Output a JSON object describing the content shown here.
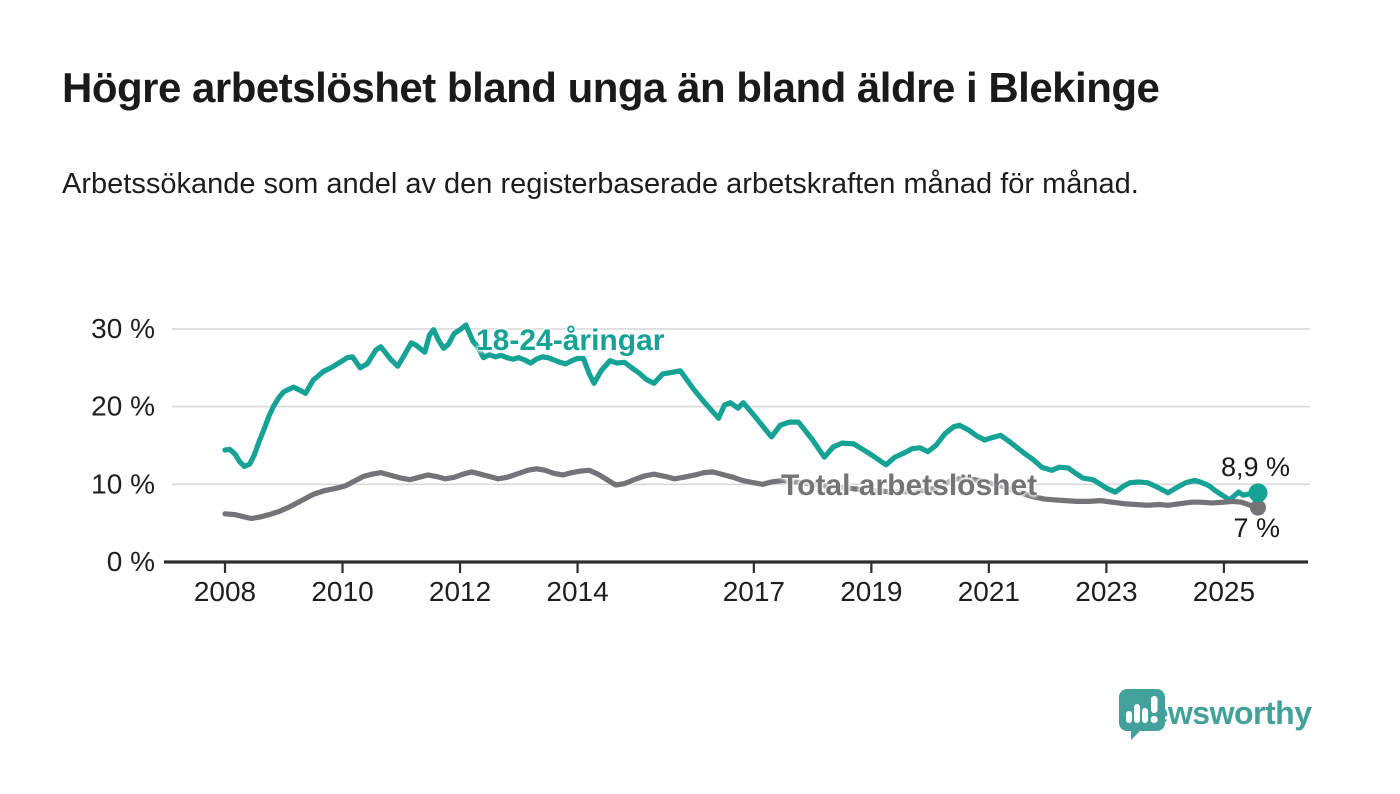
{
  "header": {
    "title": "Högre arbetslöshet bland unga än bland äldre i Blekinge",
    "subtitle": "Arbetssökande som andel av den registerbaserade arbetskraften månad för månad."
  },
  "colors": {
    "young_line": "#16a295",
    "total_line": "#737378",
    "axis": "#2e2e2e",
    "grid": "#d9d9d9",
    "tick_text": "#1f1f1f",
    "brand_teal": "#43a19c"
  },
  "chart_data": {
    "type": "line",
    "title": "Högre arbetslöshet bland unga än bland äldre i Blekinge",
    "subtitle": "Arbetssökande som andel av den registerbaserade arbetskraften månad för månad.",
    "xlabel": "",
    "ylabel": "",
    "grid": "horizontal",
    "legend_position": "inline-labels",
    "x_axis": {
      "ticks": [
        2008,
        2010,
        2012,
        2014,
        2017,
        2019,
        2021,
        2023,
        2025
      ],
      "range": [
        2007.0,
        2026.5
      ]
    },
    "y_axis": {
      "ticks": [
        {
          "value": 0,
          "label": "0 %"
        },
        {
          "value": 10,
          "label": "10 %"
        },
        {
          "value": 20,
          "label": "20 %"
        },
        {
          "value": 30,
          "label": "30 %"
        }
      ],
      "range": [
        0,
        32
      ]
    },
    "series": [
      {
        "name": "18-24-åringar",
        "color": "#16a295",
        "end_label": "8,9 %",
        "end_value": 8.9,
        "points": [
          [
            2008.0,
            14.4
          ],
          [
            2008.08,
            14.5
          ],
          [
            2008.17,
            13.9
          ],
          [
            2008.25,
            12.9
          ],
          [
            2008.33,
            12.3
          ],
          [
            2008.42,
            12.6
          ],
          [
            2008.5,
            13.8
          ],
          [
            2008.58,
            15.5
          ],
          [
            2008.67,
            17.2
          ],
          [
            2008.75,
            18.8
          ],
          [
            2008.83,
            20.1
          ],
          [
            2008.92,
            21.2
          ],
          [
            2009.0,
            21.9
          ],
          [
            2009.08,
            22.2
          ],
          [
            2009.17,
            22.5
          ],
          [
            2009.25,
            22.2
          ],
          [
            2009.37,
            21.7
          ],
          [
            2009.5,
            23.4
          ],
          [
            2009.67,
            24.5
          ],
          [
            2009.83,
            25.1
          ],
          [
            2010.0,
            25.9
          ],
          [
            2010.08,
            26.3
          ],
          [
            2010.17,
            26.4
          ],
          [
            2010.3,
            25.0
          ],
          [
            2010.42,
            25.5
          ],
          [
            2010.57,
            27.3
          ],
          [
            2010.65,
            27.7
          ],
          [
            2010.83,
            26.0
          ],
          [
            2010.94,
            25.2
          ],
          [
            2011.08,
            27.0
          ],
          [
            2011.17,
            28.2
          ],
          [
            2011.25,
            27.9
          ],
          [
            2011.4,
            27.0
          ],
          [
            2011.48,
            29.2
          ],
          [
            2011.55,
            29.9
          ],
          [
            2011.63,
            28.6
          ],
          [
            2011.72,
            27.5
          ],
          [
            2011.8,
            28.0
          ],
          [
            2011.9,
            29.4
          ],
          [
            2012.0,
            29.9
          ],
          [
            2012.1,
            30.5
          ],
          [
            2012.22,
            28.4
          ],
          [
            2012.3,
            27.7
          ],
          [
            2012.4,
            26.3
          ],
          [
            2012.5,
            26.7
          ],
          [
            2012.6,
            26.4
          ],
          [
            2012.7,
            26.6
          ],
          [
            2012.8,
            26.3
          ],
          [
            2012.9,
            26.1
          ],
          [
            2013.0,
            26.3
          ],
          [
            2013.1,
            26.0
          ],
          [
            2013.2,
            25.6
          ],
          [
            2013.3,
            26.1
          ],
          [
            2013.4,
            26.4
          ],
          [
            2013.5,
            26.3
          ],
          [
            2013.6,
            26.0
          ],
          [
            2013.7,
            25.7
          ],
          [
            2013.8,
            25.5
          ],
          [
            2013.9,
            25.9
          ],
          [
            2014.0,
            26.2
          ],
          [
            2014.1,
            26.2
          ],
          [
            2014.2,
            24.2
          ],
          [
            2014.28,
            23.0
          ],
          [
            2014.4,
            24.6
          ],
          [
            2014.55,
            25.9
          ],
          [
            2014.67,
            25.6
          ],
          [
            2014.8,
            25.7
          ],
          [
            2014.92,
            25.0
          ],
          [
            2015.05,
            24.3
          ],
          [
            2015.17,
            23.5
          ],
          [
            2015.3,
            23.0
          ],
          [
            2015.45,
            24.2
          ],
          [
            2015.6,
            24.4
          ],
          [
            2015.75,
            24.6
          ],
          [
            2015.96,
            22.4
          ],
          [
            2016.13,
            20.8
          ],
          [
            2016.27,
            19.6
          ],
          [
            2016.4,
            18.5
          ],
          [
            2016.5,
            20.2
          ],
          [
            2016.6,
            20.5
          ],
          [
            2016.73,
            19.8
          ],
          [
            2016.82,
            20.5
          ],
          [
            2017.0,
            18.9
          ],
          [
            2017.16,
            17.4
          ],
          [
            2017.3,
            16.1
          ],
          [
            2017.45,
            17.6
          ],
          [
            2017.6,
            18.0
          ],
          [
            2017.76,
            18.0
          ],
          [
            2018.0,
            15.7
          ],
          [
            2018.2,
            13.5
          ],
          [
            2018.35,
            14.8
          ],
          [
            2018.5,
            15.3
          ],
          [
            2018.7,
            15.2
          ],
          [
            2018.85,
            14.5
          ],
          [
            2019.0,
            13.8
          ],
          [
            2019.25,
            12.5
          ],
          [
            2019.4,
            13.5
          ],
          [
            2019.55,
            14.0
          ],
          [
            2019.7,
            14.6
          ],
          [
            2019.83,
            14.7
          ],
          [
            2019.96,
            14.2
          ],
          [
            2020.1,
            15.0
          ],
          [
            2020.25,
            16.5
          ],
          [
            2020.4,
            17.4
          ],
          [
            2020.5,
            17.6
          ],
          [
            2020.65,
            17.0
          ],
          [
            2020.8,
            16.2
          ],
          [
            2020.93,
            15.7
          ],
          [
            2021.05,
            16.0
          ],
          [
            2021.2,
            16.3
          ],
          [
            2021.35,
            15.5
          ],
          [
            2021.5,
            14.6
          ],
          [
            2021.6,
            14.0
          ],
          [
            2021.75,
            13.2
          ],
          [
            2021.9,
            12.2
          ],
          [
            2022.07,
            11.8
          ],
          [
            2022.2,
            12.2
          ],
          [
            2022.35,
            12.1
          ],
          [
            2022.5,
            11.3
          ],
          [
            2022.6,
            10.8
          ],
          [
            2022.77,
            10.6
          ],
          [
            2022.9,
            10.0
          ],
          [
            2023.0,
            9.5
          ],
          [
            2023.15,
            9.0
          ],
          [
            2023.3,
            9.8
          ],
          [
            2023.4,
            10.2
          ],
          [
            2023.55,
            10.3
          ],
          [
            2023.7,
            10.2
          ],
          [
            2023.85,
            9.7
          ],
          [
            2023.95,
            9.3
          ],
          [
            2024.05,
            8.9
          ],
          [
            2024.2,
            9.6
          ],
          [
            2024.35,
            10.2
          ],
          [
            2024.5,
            10.5
          ],
          [
            2024.6,
            10.3
          ],
          [
            2024.75,
            9.8
          ],
          [
            2024.85,
            9.2
          ],
          [
            2024.97,
            8.6
          ],
          [
            2025.1,
            8.0
          ],
          [
            2025.25,
            9.0
          ],
          [
            2025.33,
            8.6
          ],
          [
            2025.45,
            8.8
          ],
          [
            2025.58,
            8.9
          ]
        ]
      },
      {
        "name": "Total arbetslöshet",
        "color": "#737378",
        "end_label": "7 %",
        "end_value": 7.0,
        "points": [
          [
            2008.0,
            6.2
          ],
          [
            2008.17,
            6.1
          ],
          [
            2008.33,
            5.8
          ],
          [
            2008.45,
            5.6
          ],
          [
            2008.6,
            5.8
          ],
          [
            2008.75,
            6.1
          ],
          [
            2008.92,
            6.5
          ],
          [
            2009.1,
            7.1
          ],
          [
            2009.3,
            7.9
          ],
          [
            2009.5,
            8.7
          ],
          [
            2009.7,
            9.2
          ],
          [
            2009.9,
            9.5
          ],
          [
            2010.05,
            9.8
          ],
          [
            2010.2,
            10.4
          ],
          [
            2010.35,
            11.0
          ],
          [
            2010.5,
            11.3
          ],
          [
            2010.65,
            11.5
          ],
          [
            2010.8,
            11.2
          ],
          [
            2011.0,
            10.8
          ],
          [
            2011.15,
            10.6
          ],
          [
            2011.3,
            10.9
          ],
          [
            2011.45,
            11.2
          ],
          [
            2011.6,
            11.0
          ],
          [
            2011.75,
            10.7
          ],
          [
            2011.9,
            10.9
          ],
          [
            2012.05,
            11.3
          ],
          [
            2012.2,
            11.6
          ],
          [
            2012.35,
            11.3
          ],
          [
            2012.5,
            11.0
          ],
          [
            2012.65,
            10.7
          ],
          [
            2012.8,
            10.9
          ],
          [
            2013.0,
            11.4
          ],
          [
            2013.15,
            11.8
          ],
          [
            2013.3,
            12.0
          ],
          [
            2013.45,
            11.8
          ],
          [
            2013.6,
            11.4
          ],
          [
            2013.75,
            11.2
          ],
          [
            2013.9,
            11.5
          ],
          [
            2014.05,
            11.7
          ],
          [
            2014.2,
            11.8
          ],
          [
            2014.35,
            11.3
          ],
          [
            2014.5,
            10.6
          ],
          [
            2014.65,
            9.9
          ],
          [
            2014.8,
            10.1
          ],
          [
            2015.0,
            10.7
          ],
          [
            2015.15,
            11.1
          ],
          [
            2015.3,
            11.3
          ],
          [
            2015.5,
            11.0
          ],
          [
            2015.65,
            10.7
          ],
          [
            2015.8,
            10.9
          ],
          [
            2016.0,
            11.2
          ],
          [
            2016.15,
            11.5
          ],
          [
            2016.3,
            11.6
          ],
          [
            2016.5,
            11.2
          ],
          [
            2016.65,
            10.9
          ],
          [
            2016.8,
            10.5
          ],
          [
            2017.0,
            10.2
          ],
          [
            2017.15,
            10.0
          ],
          [
            2017.3,
            10.3
          ],
          [
            2017.5,
            10.5
          ],
          [
            2017.7,
            10.3
          ],
          [
            2018.0,
            10.0
          ],
          [
            2018.3,
            9.7
          ],
          [
            2018.6,
            9.5
          ],
          [
            2019.0,
            9.2
          ],
          [
            2019.4,
            9.0
          ],
          [
            2019.8,
            9.1
          ],
          [
            2020.1,
            9.5
          ],
          [
            2020.4,
            10.6
          ],
          [
            2020.6,
            10.8
          ],
          [
            2020.9,
            10.4
          ],
          [
            2021.2,
            9.8
          ],
          [
            2021.5,
            9.0
          ],
          [
            2021.75,
            8.4
          ],
          [
            2021.95,
            8.1
          ],
          [
            2022.1,
            8.0
          ],
          [
            2022.3,
            7.9
          ],
          [
            2022.5,
            7.8
          ],
          [
            2022.7,
            7.8
          ],
          [
            2022.9,
            7.9
          ],
          [
            2023.1,
            7.7
          ],
          [
            2023.3,
            7.5
          ],
          [
            2023.5,
            7.4
          ],
          [
            2023.7,
            7.3
          ],
          [
            2023.9,
            7.4
          ],
          [
            2024.05,
            7.3
          ],
          [
            2024.25,
            7.5
          ],
          [
            2024.45,
            7.7
          ],
          [
            2024.6,
            7.7
          ],
          [
            2024.8,
            7.6
          ],
          [
            2025.0,
            7.7
          ],
          [
            2025.15,
            7.8
          ],
          [
            2025.3,
            7.7
          ],
          [
            2025.45,
            7.3
          ],
          [
            2025.58,
            7.0
          ]
        ]
      }
    ]
  },
  "footer": {
    "brand_name": "Newsworthy"
  }
}
